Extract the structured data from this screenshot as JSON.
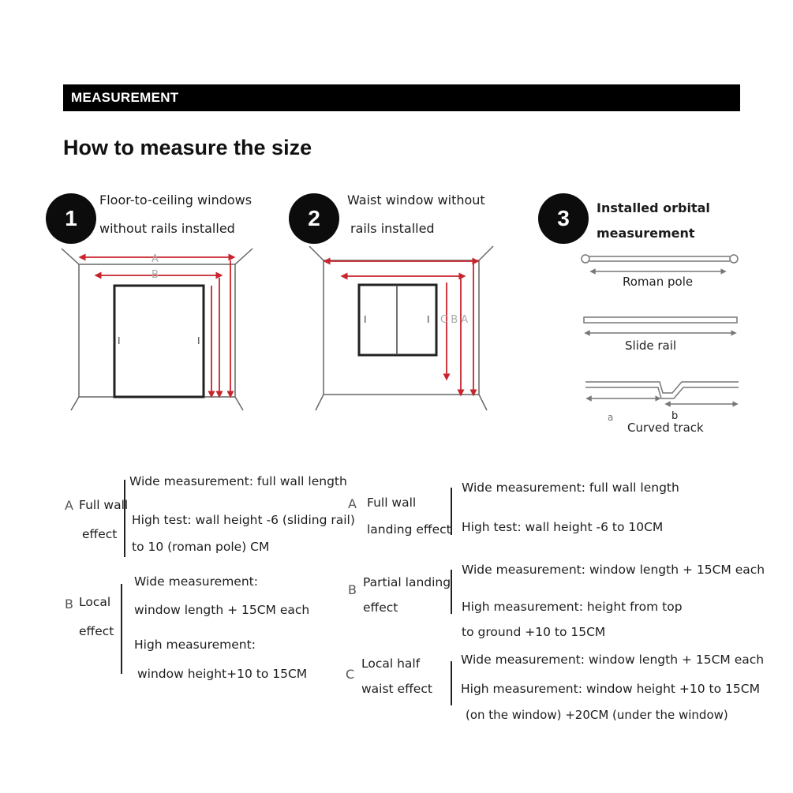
{
  "header": {
    "title": "MEASUREMENT"
  },
  "page_title": "How to measure the size",
  "steps": [
    {
      "number": "1",
      "line1": "Floor-to-ceiling windows",
      "line2": "without rails installed"
    },
    {
      "number": "2",
      "line1": "Waist window without",
      "line2": "rails installed"
    },
    {
      "number": "3",
      "line1": "Installed orbital",
      "line2": "measurement"
    }
  ],
  "diagram_labels": {
    "d1_a": "A",
    "d1_b": "B",
    "d1_i1": "I",
    "d1_i2": "I",
    "d2_i1": "I",
    "d2_i2": "I",
    "d2_cba": "C B A"
  },
  "tracks": {
    "roman_pole": "Roman pole",
    "slide_rail": "Slide rail",
    "curved_track": "Curved track",
    "seg_a": "a",
    "seg_b": "b"
  },
  "left_notes": {
    "a": {
      "letter": "A",
      "title1": "Full wall",
      "title2": "effect",
      "l1": "Wide measurement: full wall length",
      "l2": "High test: wall height -6 (sliding rail)",
      "l3": "to 10 (roman pole) CM"
    },
    "b": {
      "letter": "B",
      "title1": "Local",
      "title2": "effect",
      "l1": "Wide measurement:",
      "l2": "window length + 15CM each",
      "l3": "High measurement:",
      "l4": "window height+10 to 15CM"
    }
  },
  "right_notes": {
    "a": {
      "letter": "A",
      "title1": "Full wall",
      "title2": "landing effect",
      "l1": "Wide measurement: full wall length",
      "l2": "High test: wall height -6 to 10CM"
    },
    "b": {
      "letter": "B",
      "title1": "Partial landing",
      "title2": "effect",
      "l1": "Wide measurement: window length + 15CM each",
      "l2": "High measurement: height from top",
      "l3": "to ground +10 to 15CM"
    },
    "c": {
      "letter": "C",
      "title1": "Local half",
      "title2": "waist effect",
      "l1": "Wide measurement: window length + 15CM each",
      "l2": "High measurement: window height +10 to 15CM",
      "l3": "(on the window) +20CM (under the window)"
    }
  },
  "colors": {
    "header_bg": "#000000",
    "measure_line": "#c8242c",
    "badge": "#0c0c0c"
  }
}
